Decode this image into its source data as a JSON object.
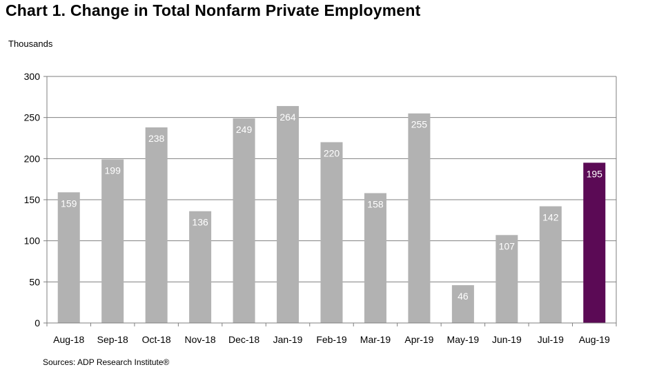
{
  "chart_data": {
    "type": "bar",
    "title": "Chart 1. Change in Total Nonfarm Private Employment",
    "ylabel": "Thousands",
    "xlabel": "",
    "source": "Sources: ADP Research Institute®",
    "categories": [
      "Aug-18",
      "Sep-18",
      "Oct-18",
      "Nov-18",
      "Dec-18",
      "Jan-19",
      "Feb-19",
      "Mar-19",
      "Apr-19",
      "May-19",
      "Jun-19",
      "Jul-19",
      "Aug-19"
    ],
    "values": [
      159,
      199,
      238,
      136,
      249,
      264,
      220,
      158,
      255,
      46,
      107,
      142,
      195
    ],
    "data_labels": [
      "159",
      "199",
      "238",
      "136",
      "249",
      "264",
      "220",
      "158",
      "255",
      "46",
      "107",
      "142",
      "195"
    ],
    "ylim": [
      0,
      300
    ],
    "yticks": [
      0,
      50,
      100,
      150,
      200,
      250,
      300
    ],
    "grid": true,
    "legend": "none",
    "colors": {
      "default": "#b2b2b2",
      "highlight": "#5b0a55",
      "grid": "#7f7f7f"
    },
    "highlight_index": 12
  }
}
